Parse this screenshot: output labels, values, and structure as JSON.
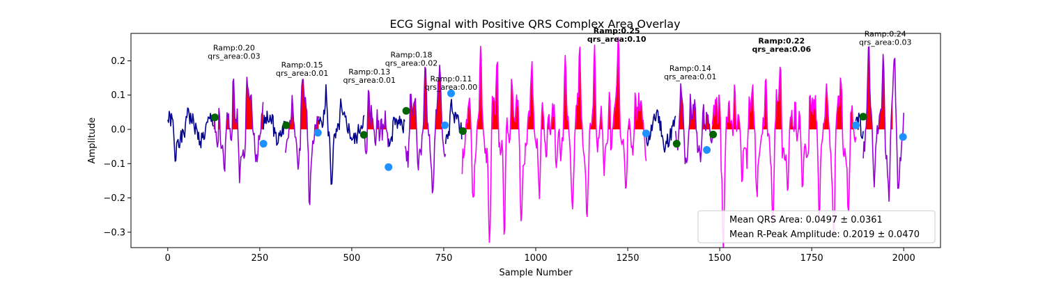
{
  "chart_data": {
    "type": "line",
    "title": "ECG Signal with Positive QRS Complex Area Overlay",
    "xlabel": "Sample Number",
    "ylabel": "Amplitude",
    "xlim": [
      -100,
      2100
    ],
    "ylim": [
      -0.345,
      0.28
    ],
    "xticks": [
      0,
      250,
      500,
      750,
      1000,
      1250,
      1500,
      1750,
      2000
    ],
    "xtick_labels": [
      "0",
      "250",
      "500",
      "750",
      "1000",
      "1250",
      "1500",
      "1750",
      "2000"
    ],
    "yticks": [
      -0.3,
      -0.2,
      -0.1,
      0.0,
      0.1,
      0.2
    ],
    "ytick_labels": [
      "−0.3",
      "−0.2",
      "−0.1",
      "0.0",
      "0.1",
      "0.2"
    ],
    "grid": false,
    "segments": [
      {
        "start": 0,
        "end": 125,
        "color": "#00008b",
        "kind": "normal",
        "seed": 1,
        "peaks": [
          [
            20,
            -0.09
          ],
          [
            55,
            0.06
          ]
        ]
      },
      {
        "start": 125,
        "end": 260,
        "color": "#9400d3",
        "kind": "qrs",
        "seed": 2,
        "peaks": [
          [
            140,
            0.15
          ],
          [
            178,
            0.2
          ],
          [
            215,
            0.14
          ]
        ],
        "troughs": [
          [
            155,
            -0.2
          ],
          [
            195,
            -0.13
          ]
        ]
      },
      {
        "start": 260,
        "end": 320,
        "color": "#00008b",
        "kind": "normal",
        "seed": 3,
        "peaks": [
          [
            285,
            0.05
          ]
        ]
      },
      {
        "start": 320,
        "end": 410,
        "color": "#9400d3",
        "kind": "qrs",
        "seed": 4,
        "peaks": [
          [
            340,
            0.05
          ],
          [
            365,
            0.15
          ]
        ],
        "troughs": [
          [
            385,
            -0.16
          ]
        ]
      },
      {
        "start": 410,
        "end": 535,
        "color": "#00008b",
        "kind": "normal",
        "seed": 5,
        "peaks": [
          [
            430,
            0.11
          ],
          [
            470,
            0.06
          ]
        ],
        "troughs": [
          [
            445,
            -0.13
          ]
        ]
      },
      {
        "start": 535,
        "end": 600,
        "color": "#9400d3",
        "kind": "qrs",
        "seed": 6,
        "peaks": [
          [
            545,
            0.13
          ],
          [
            570,
            0.12
          ]
        ],
        "troughs": [
          [
            585,
            -0.1
          ]
        ]
      },
      {
        "start": 600,
        "end": 645,
        "color": "#00008b",
        "kind": "normal",
        "seed": 7,
        "peaks": [
          [
            615,
            0.05
          ]
        ]
      },
      {
        "start": 645,
        "end": 755,
        "color": "#9400d3",
        "kind": "qrs",
        "seed": 8,
        "peaks": [
          [
            660,
            0.15
          ],
          [
            700,
            0.18
          ],
          [
            740,
            0.11
          ]
        ],
        "troughs": [
          [
            680,
            -0.13
          ],
          [
            720,
            -0.12
          ]
        ]
      },
      {
        "start": 755,
        "end": 800,
        "color": "#00008b",
        "kind": "normal",
        "seed": 9,
        "peaks": [
          [
            770,
            0.1
          ]
        ]
      },
      {
        "start": 800,
        "end": 1300,
        "color": "#ff00ff",
        "kind": "qrs",
        "seed": 10,
        "peaks": [
          [
            850,
            0.2
          ],
          [
            895,
            0.24
          ],
          [
            935,
            0.21
          ],
          [
            990,
            0.16
          ],
          [
            1035,
            0.15
          ],
          [
            1080,
            0.21
          ],
          [
            1120,
            0.17
          ],
          [
            1160,
            0.25
          ],
          [
            1200,
            0.21
          ],
          [
            1225,
            0.25
          ],
          [
            1270,
            0.16
          ]
        ],
        "troughs": [
          [
            830,
            -0.21
          ],
          [
            875,
            -0.32
          ],
          [
            915,
            -0.31
          ],
          [
            960,
            -0.24
          ],
          [
            1010,
            -0.23
          ],
          [
            1055,
            -0.18
          ],
          [
            1100,
            -0.19
          ],
          [
            1140,
            -0.21
          ],
          [
            1185,
            -0.19
          ],
          [
            1245,
            -0.21
          ]
        ]
      },
      {
        "start": 1300,
        "end": 1380,
        "color": "#00008b",
        "kind": "normal",
        "seed": 11,
        "peaks": [
          [
            1330,
            0.04
          ]
        ],
        "troughs": [
          [
            1350,
            -0.05
          ]
        ]
      },
      {
        "start": 1380,
        "end": 1480,
        "color": "#9400d3",
        "kind": "qrs",
        "seed": 12,
        "peaks": [
          [
            1395,
            0.1
          ],
          [
            1420,
            0.14
          ],
          [
            1455,
            0.12
          ]
        ],
        "troughs": [
          [
            1405,
            -0.08
          ],
          [
            1440,
            -0.11
          ]
        ]
      },
      {
        "start": 1480,
        "end": 1870,
        "color": "#ff00ff",
        "kind": "qrs",
        "seed": 13,
        "peaks": [
          [
            1500,
            0.14
          ],
          [
            1540,
            0.17
          ],
          [
            1580,
            0.11
          ],
          [
            1625,
            0.15
          ],
          [
            1665,
            0.22
          ],
          [
            1705,
            0.13
          ],
          [
            1745,
            0.16
          ],
          [
            1790,
            0.11
          ],
          [
            1830,
            0.14
          ]
        ],
        "troughs": [
          [
            1510,
            -0.26
          ],
          [
            1560,
            -0.17
          ],
          [
            1600,
            -0.18
          ],
          [
            1645,
            -0.24
          ],
          [
            1685,
            -0.21
          ],
          [
            1725,
            -0.2
          ],
          [
            1770,
            -0.21
          ],
          [
            1810,
            -0.29
          ],
          [
            1850,
            -0.23
          ]
        ]
      },
      {
        "start": 1870,
        "end": 1890,
        "color": "#00008b",
        "kind": "normal",
        "seed": 14,
        "peaks": [
          [
            1880,
            0.03
          ]
        ]
      },
      {
        "start": 1890,
        "end": 2000,
        "color": "#9400d3",
        "kind": "qrs",
        "seed": 15,
        "peaks": [
          [
            1905,
            0.2
          ],
          [
            1945,
            0.24
          ],
          [
            1975,
            0.14
          ]
        ],
        "troughs": [
          [
            1920,
            -0.13
          ],
          [
            1960,
            -0.18
          ],
          [
            1985,
            -0.12
          ]
        ]
      }
    ],
    "fill_regions": [
      [
        125,
        260
      ],
      [
        320,
        410
      ],
      [
        535,
        600
      ],
      [
        645,
        755
      ],
      [
        800,
        1300
      ],
      [
        1380,
        1480
      ],
      [
        1480,
        1870
      ],
      [
        1890,
        1970
      ]
    ],
    "qrs_onsets": [
      {
        "x": 128,
        "y": 0.035
      },
      {
        "x": 322,
        "y": 0.012
      },
      {
        "x": 533,
        "y": -0.016
      },
      {
        "x": 648,
        "y": 0.054
      },
      {
        "x": 802,
        "y": -0.005
      },
      {
        "x": 1383,
        "y": -0.042
      },
      {
        "x": 1482,
        "y": -0.015
      },
      {
        "x": 1890,
        "y": 0.037
      }
    ],
    "qrs_offsets": [
      {
        "x": 260,
        "y": -0.042
      },
      {
        "x": 408,
        "y": -0.01
      },
      {
        "x": 600,
        "y": -0.11
      },
      {
        "x": 753,
        "y": 0.012
      },
      {
        "x": 770,
        "y": 0.105
      },
      {
        "x": 1300,
        "y": -0.012
      },
      {
        "x": 1465,
        "y": -0.06
      },
      {
        "x": 1870,
        "y": 0.012
      },
      {
        "x": 1998,
        "y": -0.022
      }
    ],
    "annotations": [
      {
        "x": 180,
        "y": 0.2,
        "ramp": "Ramp:0.20",
        "area": "qrs_area:0.03",
        "bold": false
      },
      {
        "x": 365,
        "y": 0.15,
        "ramp": "Ramp:0.15",
        "area": "qrs_area:0.01",
        "bold": false
      },
      {
        "x": 548,
        "y": 0.13,
        "ramp": "Ramp:0.13",
        "area": "qrs_area:0.01",
        "bold": false
      },
      {
        "x": 662,
        "y": 0.18,
        "ramp": "Ramp:0.18",
        "area": "qrs_area:0.02",
        "bold": false
      },
      {
        "x": 770,
        "y": 0.11,
        "ramp": "Ramp:0.11",
        "area": "qrs_area:0.00",
        "bold": false
      },
      {
        "x": 1220,
        "y": 0.25,
        "ramp": "Ramp:0.25",
        "area": "qrs_area:0.10",
        "bold": true
      },
      {
        "x": 1420,
        "y": 0.14,
        "ramp": "Ramp:0.14",
        "area": "qrs_area:0.01",
        "bold": false
      },
      {
        "x": 1668,
        "y": 0.22,
        "ramp": "Ramp:0.22",
        "area": "qrs_area:0.06",
        "bold": true
      },
      {
        "x": 1950,
        "y": 0.24,
        "ramp": "Ramp:0.24",
        "area": "qrs_area:0.03",
        "bold": false
      }
    ],
    "legend": {
      "placement": "lower-right",
      "entries": [
        "Mean QRS Area: 0.0497 ± 0.0361",
        "Mean R-Peak Amplitude: 0.2019 ± 0.0470"
      ]
    },
    "colors": {
      "normal": "#00008b",
      "qrs_purple": "#9400d3",
      "qrs_magenta": "#ff00ff",
      "area_fill": "#ff0000",
      "onset_marker": "#006400",
      "offset_marker": "#1e90ff"
    }
  }
}
